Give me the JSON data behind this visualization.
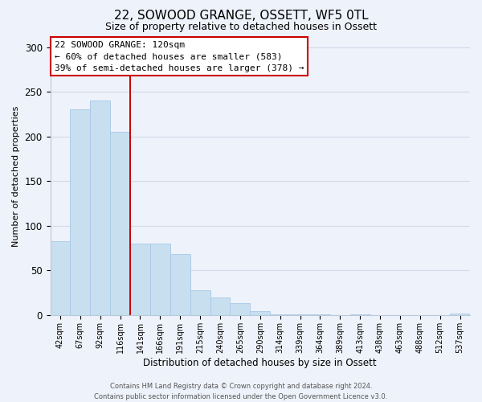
{
  "title": "22, SOWOOD GRANGE, OSSETT, WF5 0TL",
  "subtitle": "Size of property relative to detached houses in Ossett",
  "xlabel": "Distribution of detached houses by size in Ossett",
  "ylabel": "Number of detached properties",
  "bar_labels": [
    "42sqm",
    "67sqm",
    "92sqm",
    "116sqm",
    "141sqm",
    "166sqm",
    "191sqm",
    "215sqm",
    "240sqm",
    "265sqm",
    "290sqm",
    "314sqm",
    "339sqm",
    "364sqm",
    "389sqm",
    "413sqm",
    "438sqm",
    "463sqm",
    "488sqm",
    "512sqm",
    "537sqm"
  ],
  "bar_values": [
    83,
    230,
    240,
    205,
    80,
    80,
    68,
    28,
    20,
    13,
    4,
    1,
    1,
    1,
    0,
    1,
    0,
    0,
    0,
    0,
    2
  ],
  "bar_color": "#c8dff0",
  "bar_edge_color": "#a8c8e8",
  "vline_x": 3.5,
  "vline_color": "#cc0000",
  "annotation_title": "22 SOWOOD GRANGE: 120sqm",
  "annotation_line1": "← 60% of detached houses are smaller (583)",
  "annotation_line2": "39% of semi-detached houses are larger (378) →",
  "annotation_box_facecolor": "#ffffff",
  "annotation_box_edgecolor": "#cc0000",
  "footer1": "Contains HM Land Registry data © Crown copyright and database right 2024.",
  "footer2": "Contains public sector information licensed under the Open Government Licence v3.0.",
  "ylim": [
    0,
    310
  ],
  "yticks": [
    0,
    50,
    100,
    150,
    200,
    250,
    300
  ],
  "grid_color": "#d0daea",
  "background_color": "#eef2fa",
  "title_fontsize": 11,
  "subtitle_fontsize": 9,
  "ylabel_fontsize": 8,
  "xlabel_fontsize": 8.5,
  "xtick_fontsize": 7,
  "ytick_fontsize": 8.5,
  "annot_fontsize": 8,
  "footer_fontsize": 6
}
